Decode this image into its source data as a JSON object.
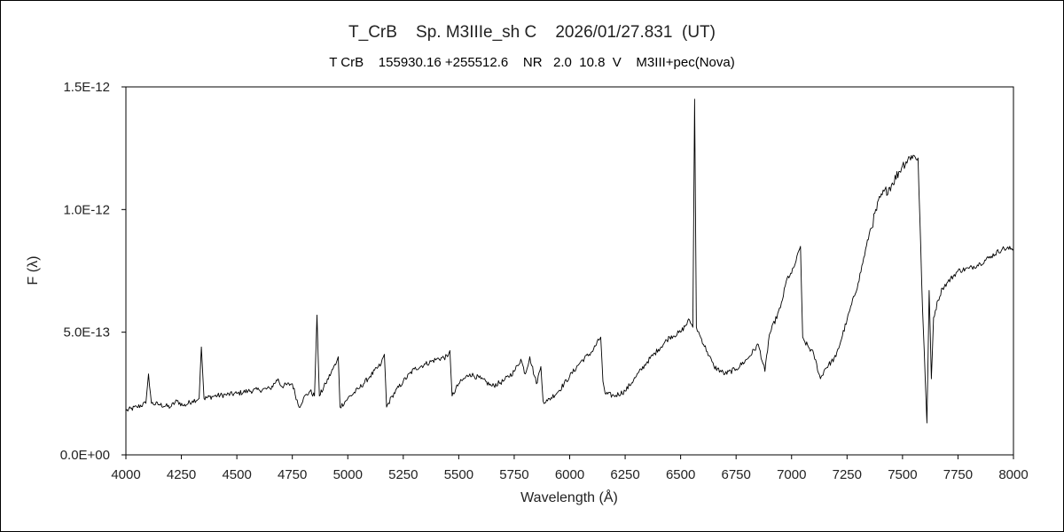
{
  "chart_data": {
    "type": "line",
    "title": "T_CrB    Sp. M3IIIe_sh C    2026/01/27.831  (UT)",
    "subtitle": "T CrB    155930.16 +255512.6    NR   2.0  10.8  V    M3III+pec(Nova)",
    "xlabel": "Wavelength (Å)",
    "ylabel": "F (λ)",
    "xlim": [
      4000,
      8000
    ],
    "ylim": [
      0,
      1.5e-12
    ],
    "x_ticks": [
      4000,
      4250,
      4500,
      4750,
      5000,
      5250,
      5500,
      5750,
      6000,
      6250,
      6500,
      6750,
      7000,
      7250,
      7500,
      7750,
      8000
    ],
    "y_ticks": [
      {
        "value": 0,
        "label": "0.0E+00"
      },
      {
        "value": 5e-13,
        "label": "5.0E-13"
      },
      {
        "value": 1e-12,
        "label": "1.0E-12"
      },
      {
        "value": 1.5e-12,
        "label": "1.5E-12"
      }
    ],
    "grid": false,
    "line_color": "#000000",
    "series": [
      {
        "x": [
          4000,
          4050,
          4090,
          4102,
          4115,
          4150,
          4200,
          4230,
          4260,
          4300,
          4330,
          4340,
          4352,
          4400,
          4450,
          4500,
          4550,
          4600,
          4650,
          4686,
          4700,
          4750,
          4780,
          4800,
          4830,
          4850,
          4861,
          4872,
          4900,
          4950,
          4957,
          4965,
          5000,
          5050,
          5100,
          5150,
          5165,
          5175,
          5200,
          5250,
          5300,
          5350,
          5400,
          5450,
          5460,
          5470,
          5500,
          5550,
          5600,
          5650,
          5700,
          5750,
          5780,
          5800,
          5820,
          5850,
          5870,
          5880,
          5900,
          5950,
          6000,
          6050,
          6100,
          6140,
          6150,
          6160,
          6200,
          6250,
          6300,
          6350,
          6400,
          6450,
          6500,
          6540,
          6555,
          6563,
          6571,
          6590,
          6620,
          6650,
          6700,
          6750,
          6800,
          6850,
          6880,
          6900,
          6950,
          6980,
          7000,
          7020,
          7040,
          7050,
          7060,
          7100,
          7130,
          7150,
          7200,
          7250,
          7300,
          7350,
          7400,
          7450,
          7500,
          7540,
          7570,
          7590,
          7610,
          7620,
          7630,
          7640,
          7660,
          7680,
          7700,
          7750,
          7800,
          7850,
          7900,
          7950,
          8000
        ],
        "y": [
          1.8e-13,
          1.95e-13,
          2.1e-13,
          3.3e-13,
          2.1e-13,
          2.05e-13,
          1.95e-13,
          2.2e-13,
          2e-13,
          2.2e-13,
          2.3e-13,
          4.4e-13,
          2.3e-13,
          2.4e-13,
          2.45e-13,
          2.5e-13,
          2.6e-13,
          2.65e-13,
          2.7e-13,
          3.1e-13,
          2.8e-13,
          2.9e-13,
          1.95e-13,
          2.3e-13,
          2.6e-13,
          2.4e-13,
          5.7e-13,
          2.4e-13,
          2.9e-13,
          3.8e-13,
          4e-13,
          1.95e-13,
          2.3e-13,
          2.7e-13,
          3.2e-13,
          3.7e-13,
          4.1e-13,
          1.95e-13,
          2.4e-13,
          3e-13,
          3.5e-13,
          3.7e-13,
          3.9e-13,
          4e-13,
          4.25e-13,
          2.4e-13,
          2.9e-13,
          3.3e-13,
          3.1e-13,
          2.8e-13,
          3e-13,
          3.4e-13,
          3.9e-13,
          3.3e-13,
          4e-13,
          2.9e-13,
          3.6e-13,
          2.2e-13,
          2.2e-13,
          2.6e-13,
          3.2e-13,
          3.8e-13,
          4.2e-13,
          4.8e-13,
          3e-13,
          2.5e-13,
          2.4e-13,
          2.6e-13,
          3.2e-13,
          3.8e-13,
          4.3e-13,
          4.8e-13,
          5e-13,
          5.5e-13,
          5.2e-13,
          1.45e-12,
          5.2e-13,
          4.8e-13,
          4.2e-13,
          3.6e-13,
          3.3e-13,
          3.5e-13,
          3.9e-13,
          4.5e-13,
          3.4e-13,
          4.9e-13,
          6e-13,
          7.2e-13,
          7.4e-13,
          7.9e-13,
          8.5e-13,
          4.8e-13,
          4.6e-13,
          4.1e-13,
          3.1e-13,
          3.5e-13,
          4e-13,
          5.5e-13,
          7e-13,
          9e-13,
          1.05e-12,
          1.1e-12,
          1.18e-12,
          1.22e-12,
          1.21e-12,
          6e-13,
          1.3e-13,
          6.7e-13,
          3.1e-13,
          5.6e-13,
          6.3e-13,
          6.8e-13,
          7e-13,
          7.5e-13,
          7.6e-13,
          7.8e-13,
          8.1e-13,
          8.4e-13,
          8.4e-13
        ]
      }
    ]
  }
}
